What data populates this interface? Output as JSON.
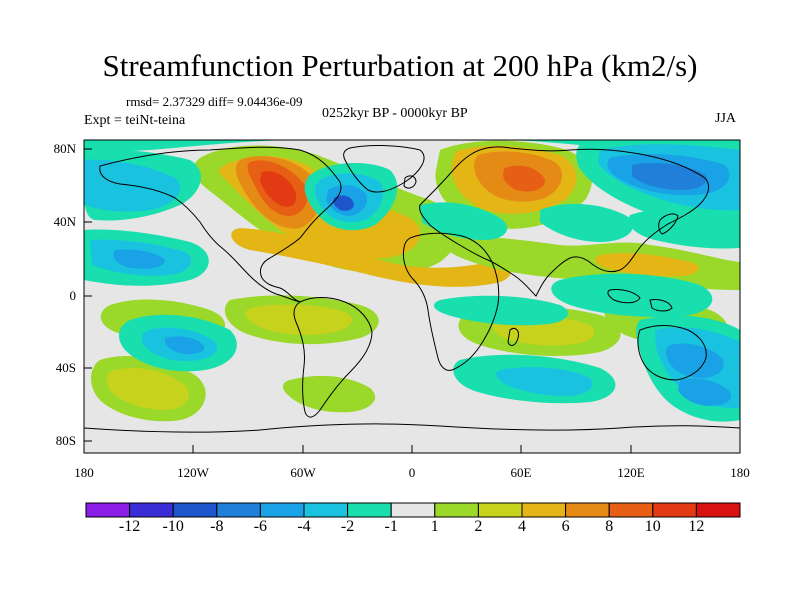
{
  "figure": {
    "title": "Streamfunction Perturbation at 200 hPa (km2/s)",
    "stats": "rmsd= 2.37329 diff= 9.04436e-09",
    "period": "0252kyr BP - 0000kyr BP",
    "experiment": "Expt = teiNt-teina",
    "season": "JJA"
  },
  "map": {
    "lat_ticks": [
      "80N",
      "40N",
      "0",
      "40S",
      "80S"
    ],
    "lon_ticks": [
      "180",
      "120W",
      "60W",
      "0",
      "60E",
      "120E",
      "180"
    ],
    "lon_range": [
      -180,
      180
    ],
    "lat_range": [
      -90,
      90
    ],
    "field_description_labels": []
  },
  "colorbar": {
    "labels": [
      "-12",
      "-10",
      "-8",
      "-6",
      "-4",
      "-2",
      "-1",
      "1",
      "2",
      "4",
      "6",
      "8",
      "10",
      "12"
    ],
    "colors": [
      "#8a1de6",
      "#3b2dd6",
      "#1e55cc",
      "#1f7fd9",
      "#1aa2e6",
      "#19c3e0",
      "#19dfae",
      "#e6e6e6",
      "#9ad82a",
      "#c7d21c",
      "#e3b616",
      "#e68a16",
      "#e65f14",
      "#e23a12",
      "#d91111"
    ]
  }
}
